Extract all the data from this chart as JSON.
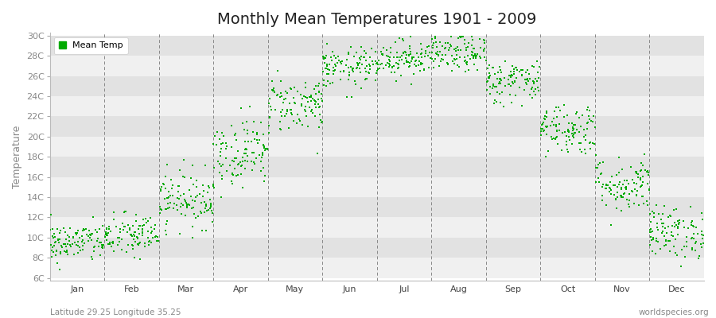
{
  "title": "Monthly Mean Temperatures 1901 - 2009",
  "ylabel": "Temperature",
  "subtitle_left": "Latitude 29.25 Longitude 35.25",
  "subtitle_right": "worldspecies.org",
  "legend_label": "Mean Temp",
  "dot_color": "#00aa00",
  "bg_color": "#ffffff",
  "plot_bg_light": "#f0f0f0",
  "plot_bg_dark": "#e2e2e2",
  "ytick_color": "#888888",
  "xtick_color": "#444444",
  "grid_color": "#888888",
  "ylim_min": 6,
  "ylim_max": 30,
  "yticks": [
    6,
    8,
    10,
    12,
    14,
    16,
    18,
    20,
    22,
    24,
    26,
    28,
    30
  ],
  "ytick_labels": [
    "6C",
    "8C",
    "10C",
    "12C",
    "14C",
    "16C",
    "18C",
    "20C",
    "22C",
    "24C",
    "26C",
    "28C",
    "30C"
  ],
  "months": [
    "Jan",
    "Feb",
    "Mar",
    "Apr",
    "May",
    "Jun",
    "Jul",
    "Aug",
    "Sep",
    "Oct",
    "Nov",
    "Dec"
  ],
  "month_means": [
    9.5,
    10.2,
    13.8,
    18.5,
    23.2,
    26.8,
    27.8,
    28.2,
    25.5,
    20.8,
    15.2,
    10.5
  ],
  "month_stds": [
    1.0,
    1.1,
    1.4,
    1.7,
    1.4,
    1.0,
    0.9,
    0.9,
    1.1,
    1.3,
    1.4,
    1.3
  ],
  "n_years": 109,
  "seed": 42,
  "dot_size": 2.5,
  "title_fontsize": 14,
  "label_fontsize": 8,
  "axis_label_fontsize": 9
}
